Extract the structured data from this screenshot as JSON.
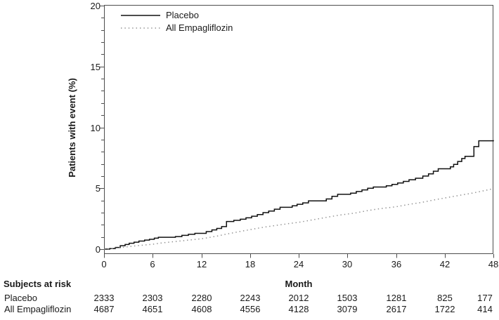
{
  "chart_data": {
    "type": "line",
    "subtype": "kaplan-meier-cumulative-incidence-step",
    "title": "",
    "xlabel": "Month",
    "ylabel": "Patients with event (%)",
    "xlim": [
      0,
      48
    ],
    "ylim": [
      0,
      20
    ],
    "xticks": [
      0,
      6,
      12,
      18,
      24,
      30,
      36,
      42,
      48
    ],
    "yticks": [
      0,
      5,
      10,
      15,
      20
    ],
    "y_minor_tick_step": 1,
    "grid": false,
    "legend_position": "top-left-inside",
    "colors": {
      "axis": "#4d4d4d",
      "text": "#1a1a1a",
      "placebo_line": "#111111",
      "empagliflozin_line": "#8f8f8f"
    },
    "series": [
      {
        "name": "Placebo",
        "style": "solid",
        "color": "#111111",
        "step": true,
        "points": [
          [
            0,
            0
          ],
          [
            0.7,
            0.04
          ],
          [
            1.4,
            0.14
          ],
          [
            2,
            0.28
          ],
          [
            2.6,
            0.38
          ],
          [
            3.1,
            0.48
          ],
          [
            3.7,
            0.57
          ],
          [
            4.3,
            0.66
          ],
          [
            5,
            0.74
          ],
          [
            5.6,
            0.81
          ],
          [
            6.2,
            0.9
          ],
          [
            6.7,
            0.97
          ],
          [
            8.8,
            1.03
          ],
          [
            9.6,
            1.13
          ],
          [
            10.4,
            1.22
          ],
          [
            11.2,
            1.3
          ],
          [
            12.6,
            1.44
          ],
          [
            13.3,
            1.58
          ],
          [
            13.9,
            1.7
          ],
          [
            14.5,
            1.85
          ],
          [
            15.1,
            2.27
          ],
          [
            16,
            2.36
          ],
          [
            16.8,
            2.46
          ],
          [
            17.5,
            2.57
          ],
          [
            18.2,
            2.7
          ],
          [
            18.9,
            2.84
          ],
          [
            19.6,
            3.0
          ],
          [
            20.3,
            3.13
          ],
          [
            21,
            3.28
          ],
          [
            21.7,
            3.44
          ],
          [
            23.2,
            3.56
          ],
          [
            23.8,
            3.68
          ],
          [
            24.5,
            3.8
          ],
          [
            25.2,
            3.96
          ],
          [
            27.4,
            4.12
          ],
          [
            28.1,
            4.34
          ],
          [
            28.8,
            4.5
          ],
          [
            30.4,
            4.6
          ],
          [
            31.1,
            4.73
          ],
          [
            31.8,
            4.86
          ],
          [
            32.5,
            5.0
          ],
          [
            33.2,
            5.1
          ],
          [
            34.8,
            5.2
          ],
          [
            35.5,
            5.32
          ],
          [
            36.2,
            5.43
          ],
          [
            36.9,
            5.56
          ],
          [
            37.6,
            5.7
          ],
          [
            38.4,
            5.82
          ],
          [
            39.3,
            6.0
          ],
          [
            40,
            6.18
          ],
          [
            40.6,
            6.4
          ],
          [
            41.2,
            6.6
          ],
          [
            42.7,
            6.76
          ],
          [
            43.1,
            6.96
          ],
          [
            43.6,
            7.2
          ],
          [
            44.1,
            7.44
          ],
          [
            44.5,
            7.62
          ],
          [
            45.6,
            8.42
          ],
          [
            46.2,
            8.9
          ],
          [
            48,
            8.95
          ]
        ]
      },
      {
        "name": "All Empagliflozin",
        "style": "dotted",
        "color": "#8f8f8f",
        "step": false,
        "points": [
          [
            0,
            0
          ],
          [
            1,
            0.05
          ],
          [
            2,
            0.12
          ],
          [
            3,
            0.2
          ],
          [
            4,
            0.28
          ],
          [
            5,
            0.34
          ],
          [
            6,
            0.4
          ],
          [
            7,
            0.5
          ],
          [
            8,
            0.57
          ],
          [
            9,
            0.64
          ],
          [
            10,
            0.71
          ],
          [
            11,
            0.78
          ],
          [
            12,
            0.85
          ],
          [
            13,
            0.96
          ],
          [
            14,
            1.08
          ],
          [
            15,
            1.22
          ],
          [
            16,
            1.35
          ],
          [
            17,
            1.48
          ],
          [
            18,
            1.6
          ],
          [
            19,
            1.72
          ],
          [
            20,
            1.83
          ],
          [
            21,
            1.93
          ],
          [
            22,
            2.02
          ],
          [
            23,
            2.12
          ],
          [
            24,
            2.2
          ],
          [
            25,
            2.32
          ],
          [
            26,
            2.44
          ],
          [
            27,
            2.56
          ],
          [
            28,
            2.68
          ],
          [
            29,
            2.79
          ],
          [
            30,
            2.88
          ],
          [
            31,
            2.97
          ],
          [
            32,
            3.1
          ],
          [
            33,
            3.22
          ],
          [
            34,
            3.32
          ],
          [
            35,
            3.4
          ],
          [
            36,
            3.48
          ],
          [
            37,
            3.6
          ],
          [
            38,
            3.72
          ],
          [
            39,
            3.82
          ],
          [
            40,
            3.95
          ],
          [
            41,
            4.08
          ],
          [
            42,
            4.2
          ],
          [
            43,
            4.32
          ],
          [
            44,
            4.44
          ],
          [
            45,
            4.55
          ],
          [
            46,
            4.68
          ],
          [
            47,
            4.82
          ],
          [
            48,
            4.97
          ]
        ]
      }
    ],
    "risk_table": {
      "title": "Subjects at risk",
      "months": [
        0,
        6,
        12,
        18,
        24,
        30,
        36,
        42,
        48
      ],
      "rows": [
        {
          "label": "Placebo",
          "counts": [
            "2333",
            "2303",
            "2280",
            "2243",
            "2012",
            "1503",
            "1281",
            "825",
            "177"
          ]
        },
        {
          "label": "All Empagliflozin",
          "counts": [
            "4687",
            "4651",
            "4608",
            "4556",
            "4128",
            "3079",
            "2617",
            "1722",
            "414"
          ]
        }
      ]
    }
  }
}
